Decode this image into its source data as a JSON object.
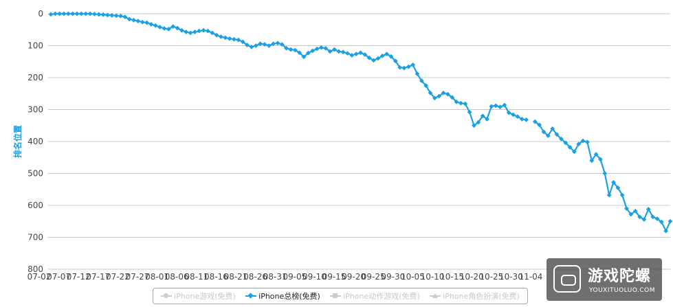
{
  "chart_data": {
    "type": "line",
    "ylabel": "排名位置",
    "xlabel": "",
    "ylim": [
      0,
      800
    ],
    "y_inverted": true,
    "yticks": [
      0,
      100,
      200,
      300,
      400,
      500,
      600,
      700,
      800
    ],
    "grid": true,
    "legend_placement": "bottom-center",
    "x_tick_labels": [
      "07-02",
      "07-07",
      "07-12",
      "07-17",
      "07-22",
      "07-27",
      "08-01",
      "08-06",
      "08-11",
      "08-16",
      "08-21",
      "08-26",
      "08-31",
      "09-05",
      "09-10",
      "09-15",
      "09-20",
      "09-25",
      "09-30",
      "10-05",
      "10-10",
      "10-15",
      "10-20",
      "10-25",
      "10-30",
      "11-04"
    ],
    "series": [
      {
        "name": "iPhone游戏(免费)",
        "visible": false,
        "color": "#cccccc",
        "marker": "circle",
        "values": []
      },
      {
        "name": "iPhone总榜(免费)",
        "visible": true,
        "color": "#1aa0e6",
        "marker": "diamond",
        "values": [
          2,
          0,
          0,
          0,
          0,
          0,
          0,
          0,
          0,
          0,
          1,
          2,
          3,
          4,
          5,
          6,
          7,
          10,
          17,
          20,
          23,
          26,
          28,
          33,
          37,
          42,
          46,
          48,
          40,
          45,
          52,
          57,
          60,
          57,
          54,
          52,
          54,
          60,
          67,
          72,
          75,
          78,
          80,
          82,
          88,
          98,
          104,
          100,
          94,
          96,
          100,
          94,
          92,
          96,
          108,
          112,
          114,
          122,
          135,
          123,
          116,
          110,
          106,
          108,
          118,
          112,
          118,
          120,
          124,
          130,
          126,
          122,
          128,
          138,
          146,
          140,
          132,
          126,
          134,
          148,
          168,
          170,
          166,
          160,
          188,
          210,
          225,
          248,
          264,
          258,
          248,
          252,
          262,
          276,
          280,
          282,
          308,
          350,
          340,
          320,
          330,
          290,
          288,
          292,
          286,
          310,
          316,
          322,
          330,
          332,
          null,
          338,
          348,
          370,
          382,
          360,
          378,
          392,
          404,
          418,
          432,
          408,
          398,
          402,
          460,
          440,
          456,
          500,
          568,
          528,
          545,
          568,
          610,
          628,
          618,
          636,
          644,
          612,
          636,
          642,
          652,
          680,
          650
        ]
      },
      {
        "name": "iPhone动作游戏(免费)",
        "visible": false,
        "color": "#cccccc",
        "marker": "square",
        "values": []
      },
      {
        "name": "iPhone角色扮演(免费)",
        "visible": false,
        "color": "#cccccc",
        "marker": "triangle",
        "values": []
      }
    ]
  },
  "watermark": {
    "cn": "游戏陀螺",
    "en": "YOUXITUOLUO.COM"
  }
}
